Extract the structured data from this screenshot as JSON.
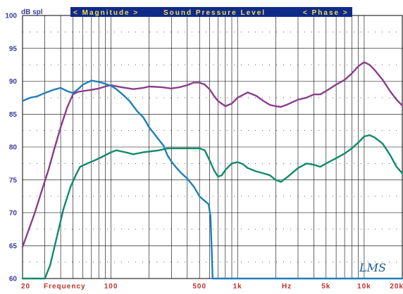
{
  "header": {
    "left": "< Magnitude >",
    "center": "Sound Pressure Level",
    "right": "< Phase >"
  },
  "logo": "LMS",
  "chart_data": {
    "type": "line",
    "ylabel": "dB spl",
    "xlabel": "Frequency",
    "x_unit_label": "Hz",
    "x_scale": "log",
    "xlim": [
      20,
      20000
    ],
    "ylim": [
      60,
      100
    ],
    "grid": true,
    "yticks": [
      60,
      65,
      70,
      75,
      80,
      85,
      90,
      95,
      100
    ],
    "xtick_labels": [
      {
        "x": 20,
        "label": "20"
      },
      {
        "x": 100,
        "label": "100"
      },
      {
        "x": 500,
        "label": "500"
      },
      {
        "x": 1000,
        "label": "1k"
      },
      {
        "x": 5000,
        "label": "5k"
      },
      {
        "x": 10000,
        "label": "10k"
      },
      {
        "x": 20000,
        "label": "20k"
      }
    ],
    "colors": {
      "purple": "#8a3e8a",
      "blue": "#1f7fb8",
      "green": "#128a6a"
    },
    "series": [
      {
        "color_key": "purple",
        "points": [
          [
            20,
            64.8
          ],
          [
            22,
            67
          ],
          [
            25,
            70
          ],
          [
            28,
            73
          ],
          [
            32,
            76.5
          ],
          [
            36,
            80
          ],
          [
            40,
            83
          ],
          [
            45,
            86
          ],
          [
            50,
            88
          ],
          [
            55,
            88.4
          ],
          [
            60,
            88.5
          ],
          [
            70,
            88.7
          ],
          [
            80,
            88.9
          ],
          [
            90,
            89.2
          ],
          [
            100,
            89.4
          ],
          [
            120,
            89.1
          ],
          [
            150,
            88.8
          ],
          [
            180,
            89
          ],
          [
            200,
            89.2
          ],
          [
            250,
            89.1
          ],
          [
            300,
            88.9
          ],
          [
            350,
            89.1
          ],
          [
            400,
            89.4
          ],
          [
            450,
            89.8
          ],
          [
            500,
            89.8
          ],
          [
            550,
            89.5
          ],
          [
            600,
            88.8
          ],
          [
            650,
            87.8
          ],
          [
            700,
            87
          ],
          [
            800,
            86.2
          ],
          [
            900,
            86.6
          ],
          [
            1000,
            87.5
          ],
          [
            1200,
            88.3
          ],
          [
            1400,
            87.8
          ],
          [
            1600,
            87
          ],
          [
            1800,
            86.4
          ],
          [
            2000,
            86.2
          ],
          [
            2200,
            86.1
          ],
          [
            2500,
            86.5
          ],
          [
            3000,
            87.2
          ],
          [
            3500,
            87.5
          ],
          [
            4000,
            88
          ],
          [
            4500,
            88
          ],
          [
            5000,
            88.5
          ],
          [
            6000,
            89.5
          ],
          [
            7000,
            90.2
          ],
          [
            8000,
            91.2
          ],
          [
            9000,
            92.3
          ],
          [
            10000,
            92.9
          ],
          [
            11000,
            92.5
          ],
          [
            12000,
            91.8
          ],
          [
            14000,
            90.2
          ],
          [
            16000,
            88.5
          ],
          [
            18000,
            87.2
          ],
          [
            20000,
            86.3
          ]
        ]
      },
      {
        "color_key": "blue",
        "points": [
          [
            20,
            87
          ],
          [
            23,
            87.5
          ],
          [
            26,
            87.7
          ],
          [
            30,
            88.2
          ],
          [
            35,
            88.7
          ],
          [
            40,
            89
          ],
          [
            45,
            88.5
          ],
          [
            50,
            88.2
          ],
          [
            55,
            88.8
          ],
          [
            60,
            89.5
          ],
          [
            70,
            90.1
          ],
          [
            80,
            89.9
          ],
          [
            90,
            89.6
          ],
          [
            100,
            89.3
          ],
          [
            110,
            88.8
          ],
          [
            120,
            88.2
          ],
          [
            140,
            87
          ],
          [
            160,
            85.5
          ],
          [
            180,
            84.5
          ],
          [
            200,
            83
          ],
          [
            230,
            81.5
          ],
          [
            260,
            80.2
          ],
          [
            280,
            78.7
          ],
          [
            300,
            77.8
          ],
          [
            330,
            76.8
          ],
          [
            360,
            76
          ],
          [
            400,
            75.2
          ],
          [
            450,
            74
          ],
          [
            500,
            72.5
          ],
          [
            550,
            71.8
          ],
          [
            590,
            71.3
          ],
          [
            610,
            69.5
          ],
          [
            625,
            64
          ],
          [
            635,
            60
          ],
          [
            700,
            60
          ],
          [
            1000,
            60
          ],
          [
            5000,
            60
          ],
          [
            20000,
            60
          ]
        ]
      },
      {
        "color_key": "green",
        "points": [
          [
            20,
            60
          ],
          [
            30,
            60
          ],
          [
            33,
            62
          ],
          [
            37,
            66
          ],
          [
            42,
            70.5
          ],
          [
            48,
            74
          ],
          [
            52,
            75.5
          ],
          [
            57,
            77
          ],
          [
            65,
            77.5
          ],
          [
            75,
            78
          ],
          [
            85,
            78.5
          ],
          [
            100,
            79.2
          ],
          [
            110,
            79.5
          ],
          [
            130,
            79.2
          ],
          [
            150,
            78.9
          ],
          [
            180,
            79.2
          ],
          [
            200,
            79.3
          ],
          [
            240,
            79.5
          ],
          [
            280,
            79.8
          ],
          [
            350,
            79.8
          ],
          [
            400,
            79.8
          ],
          [
            500,
            79.8
          ],
          [
            550,
            79.5
          ],
          [
            600,
            78
          ],
          [
            650,
            76.5
          ],
          [
            700,
            75.5
          ],
          [
            750,
            75.7
          ],
          [
            800,
            76.5
          ],
          [
            900,
            77.5
          ],
          [
            1000,
            77.7
          ],
          [
            1100,
            77.4
          ],
          [
            1200,
            76.8
          ],
          [
            1400,
            76.3
          ],
          [
            1600,
            76
          ],
          [
            1800,
            75.7
          ],
          [
            2000,
            75
          ],
          [
            2200,
            74.7
          ],
          [
            2500,
            75.5
          ],
          [
            3000,
            76.8
          ],
          [
            3500,
            77.5
          ],
          [
            4000,
            77.3
          ],
          [
            4500,
            77
          ],
          [
            5000,
            77.5
          ],
          [
            6000,
            78.3
          ],
          [
            7000,
            79
          ],
          [
            8000,
            79.8
          ],
          [
            9000,
            80.7
          ],
          [
            10000,
            81.6
          ],
          [
            11000,
            81.8
          ],
          [
            12000,
            81.5
          ],
          [
            14000,
            80.5
          ],
          [
            16000,
            78.8
          ],
          [
            18000,
            77
          ],
          [
            20000,
            76
          ]
        ]
      }
    ]
  }
}
